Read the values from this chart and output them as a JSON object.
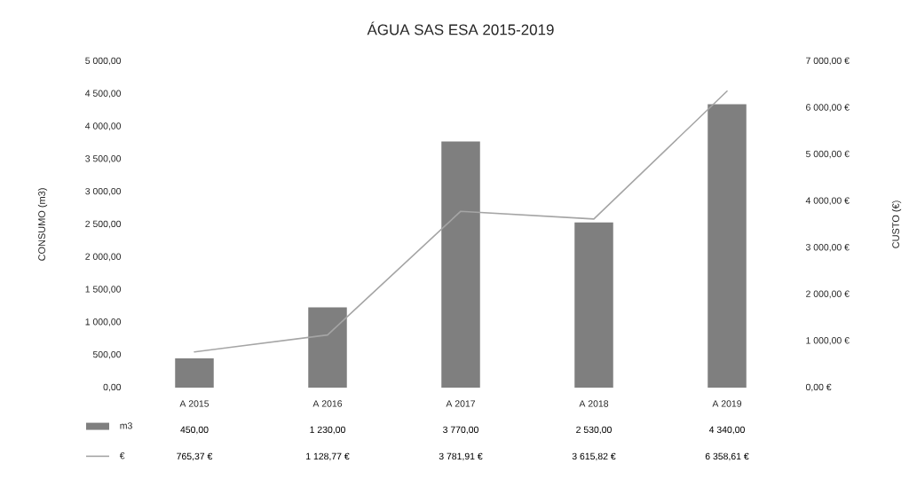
{
  "chart_data": {
    "type": "bar",
    "title": "ÁGUA SAS ESA 2015-2019",
    "ylabel": "CONSUMO (m3)",
    "y2label": "CUSTO (€)",
    "categories": [
      "A 2015",
      "A 2016",
      "A 2017",
      "A 2018",
      "A 2019"
    ],
    "series": [
      {
        "name": "m3",
        "color": "#7f7f7f",
        "values": [
          450,
          1230,
          3770,
          2530,
          4340
        ],
        "value_labels": [
          "450,00",
          "1 230,00",
          "3 770,00",
          "2 530,00",
          "4 340,00"
        ]
      },
      {
        "name": "€",
        "type": "line",
        "axis": "y2",
        "color": "#a5a5a5",
        "values": [
          765.37,
          1128.77,
          3781.91,
          3615.82,
          6358.61
        ],
        "value_labels": [
          "765,37 €",
          "1 128,77 €",
          "3 781,91 €",
          "3 615,82 €",
          "6 358,61 €"
        ]
      }
    ],
    "ylim": [
      0,
      5000
    ],
    "yticks": [
      {
        "value": 0,
        "label": "0,00"
      },
      {
        "value": 500,
        "label": "500,00"
      },
      {
        "value": 1000,
        "label": "1 000,00"
      },
      {
        "value": 1500,
        "label": "1 500,00"
      },
      {
        "value": 2000,
        "label": "2 000,00"
      },
      {
        "value": 2500,
        "label": "2 500,00"
      },
      {
        "value": 3000,
        "label": "3 000,00"
      },
      {
        "value": 3500,
        "label": "3 500,00"
      },
      {
        "value": 4000,
        "label": "4 000,00"
      },
      {
        "value": 4500,
        "label": "4 500,00"
      },
      {
        "value": 5000,
        "label": "5 000,00"
      }
    ],
    "y2lim": [
      0,
      7000
    ],
    "y2ticks": [
      {
        "value": 0,
        "label": "0,00 €"
      },
      {
        "value": 1000,
        "label": "1 000,00 €"
      },
      {
        "value": 2000,
        "label": "2 000,00 €"
      },
      {
        "value": 3000,
        "label": "3 000,00 €"
      },
      {
        "value": 4000,
        "label": "4 000,00 €"
      },
      {
        "value": 5000,
        "label": "5 000,00 €"
      },
      {
        "value": 6000,
        "label": "6 000,00 €"
      },
      {
        "value": 7000,
        "label": "7 000,00 €"
      }
    ],
    "legend": "bottom"
  }
}
